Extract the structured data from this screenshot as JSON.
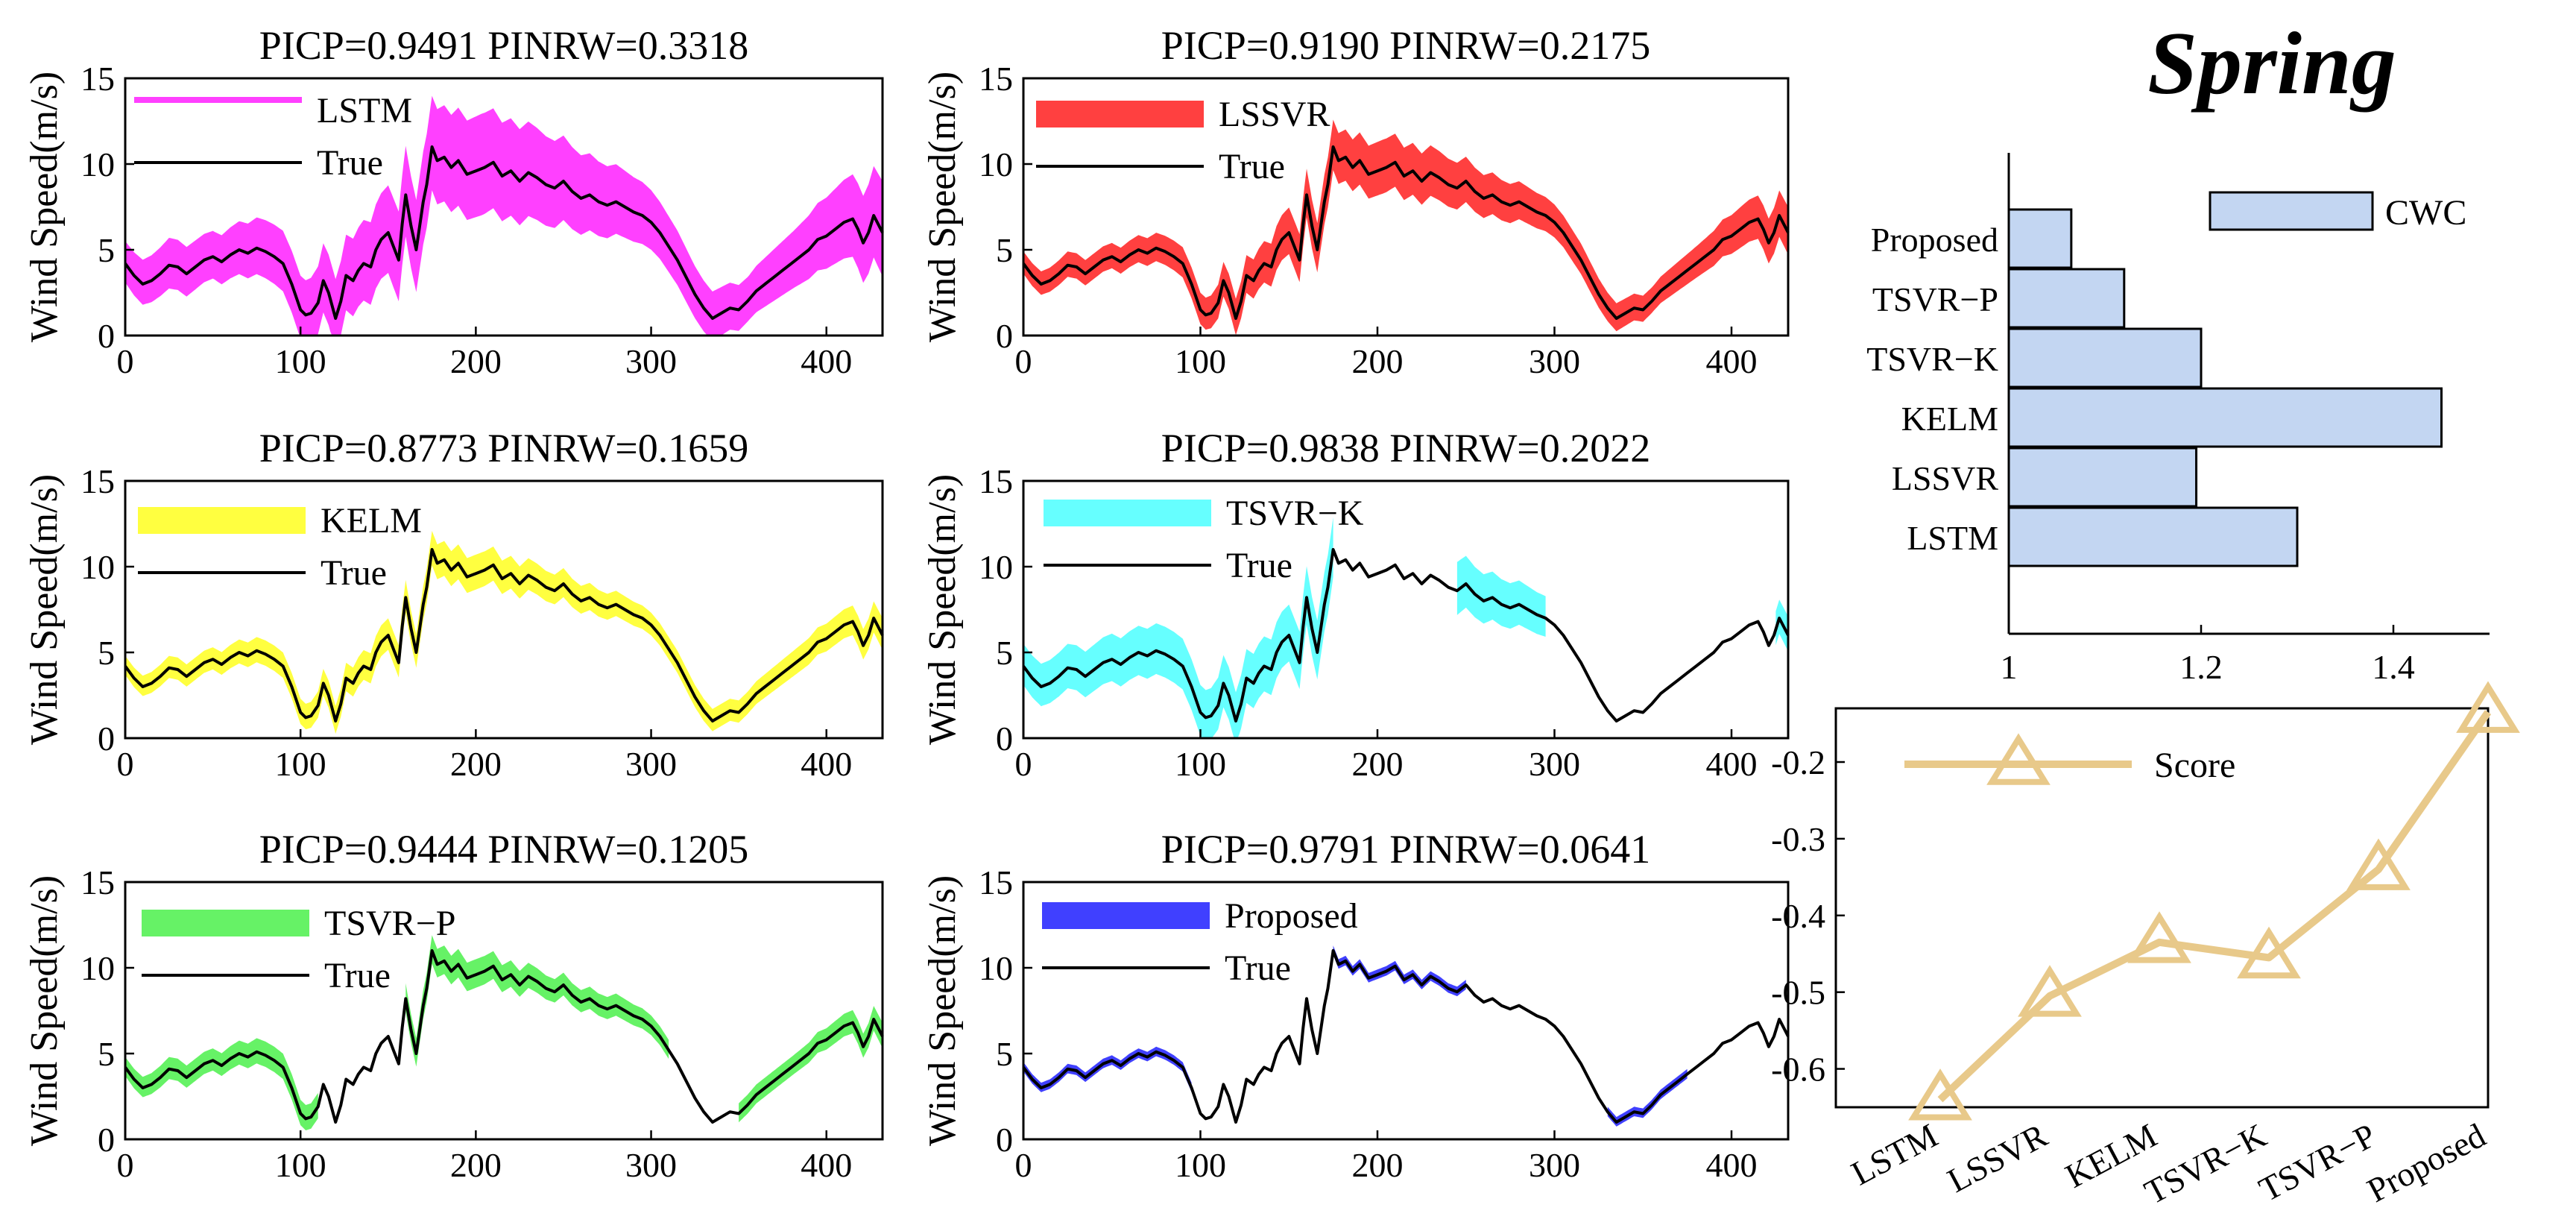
{
  "figure_title": "Spring",
  "chart_data": [
    {
      "type": "line",
      "title": "PICP=0.9491  PINRW=0.3318",
      "ylabel": "Wind Speed(m/s)",
      "xlim": [
        0,
        432
      ],
      "ylim": [
        0,
        15
      ],
      "xticks": [
        0,
        100,
        200,
        300,
        400
      ],
      "yticks": [
        0,
        5,
        10,
        15
      ],
      "series": [
        {
          "name": "LSTM",
          "kind": "interval",
          "color": "#ff00ff"
        },
        {
          "name": "True",
          "kind": "line",
          "color": "#000000"
        }
      ],
      "interval_halfwidth": [
        1.3,
        1.6,
        1.5,
        1.8,
        2.0,
        2.4,
        2.8,
        3.0,
        3.2,
        3.0,
        2.6,
        2.2,
        1.8,
        1.6,
        1.4,
        1.8,
        2.4,
        3.0
      ],
      "coverage": [
        [
          0,
          432
        ]
      ]
    },
    {
      "type": "line",
      "title": "PICP=0.9190  PINRW=0.2175",
      "ylabel": "Wind Speed(m/s)",
      "xlim": [
        0,
        432
      ],
      "ylim": [
        0,
        15
      ],
      "xticks": [
        0,
        100,
        200,
        300,
        400
      ],
      "yticks": [
        0,
        5,
        10,
        15
      ],
      "series": [
        {
          "name": "LSSVR",
          "kind": "interval",
          "color": "#ff0000"
        },
        {
          "name": "True",
          "kind": "line",
          "color": "#000000"
        }
      ],
      "interval_halfwidth": [
        0.7,
        0.8,
        0.8,
        0.9,
        1.0,
        1.2,
        1.5,
        1.6,
        1.7,
        1.6,
        1.4,
        1.2,
        1.0,
        0.9,
        0.8,
        1.0,
        1.3,
        1.5
      ],
      "coverage": [
        [
          0,
          432
        ]
      ]
    },
    {
      "type": "line",
      "title": "PICP=0.8773  PINRW=0.1659",
      "ylabel": "Wind Speed(m/s)",
      "xlim": [
        0,
        432
      ],
      "ylim": [
        0,
        15
      ],
      "xticks": [
        0,
        100,
        200,
        300,
        400
      ],
      "yticks": [
        0,
        5,
        10,
        15
      ],
      "series": [
        {
          "name": "KELM",
          "kind": "interval",
          "color": "#ffff00"
        },
        {
          "name": "True",
          "kind": "line",
          "color": "#000000"
        }
      ],
      "interval_halfwidth": [
        0.6,
        0.7,
        0.7,
        0.8,
        0.8,
        0.9,
        1.0,
        1.1,
        1.1,
        1.0,
        0.9,
        0.8,
        0.7,
        0.7,
        0.7,
        0.8,
        0.9,
        1.0
      ],
      "coverage": [
        [
          0,
          432
        ]
      ]
    },
    {
      "type": "line",
      "title": "PICP=0.9838  PINRW=0.2022",
      "ylabel": "Wind Speed(m/s)",
      "xlim": [
        0,
        432
      ],
      "ylim": [
        0,
        15
      ],
      "xticks": [
        0,
        100,
        200,
        300,
        400
      ],
      "yticks": [
        0,
        5,
        10,
        15
      ],
      "series": [
        {
          "name": "TSVR−K",
          "kind": "interval",
          "color": "#33ffff"
        },
        {
          "name": "True",
          "kind": "line",
          "color": "#000000"
        }
      ],
      "interval_halfwidth": [
        1.3,
        1.4,
        1.5,
        1.6,
        1.6,
        1.7,
        1.8,
        1.9,
        2.0,
        1.8,
        1.6,
        1.4,
        1.2,
        1.1,
        1.0,
        1.0,
        1.0,
        1.1
      ],
      "coverage": [
        [
          0,
          175
        ],
        [
          245,
          295
        ],
        [
          425,
          432
        ]
      ]
    },
    {
      "type": "line",
      "title": "PICP=0.9444  PINRW=0.1205",
      "ylabel": "Wind Speed(m/s)",
      "xlim": [
        0,
        432
      ],
      "ylim": [
        0,
        15
      ],
      "xticks": [
        0,
        100,
        200,
        300,
        400
      ],
      "yticks": [
        0,
        5,
        10,
        15
      ],
      "series": [
        {
          "name": "TSVR−P",
          "kind": "interval",
          "color": "#33ee33"
        },
        {
          "name": "True",
          "kind": "line",
          "color": "#000000"
        }
      ],
      "interval_halfwidth": [
        0.6,
        0.7,
        0.7,
        0.8,
        0.8,
        0.8,
        0.9,
        0.9,
        0.9,
        0.8,
        0.7,
        0.7,
        0.6,
        0.6,
        0.6,
        0.6,
        0.7,
        0.8
      ],
      "coverage": [
        [
          0,
          110
        ],
        [
          160,
          310
        ],
        [
          350,
          432
        ]
      ]
    },
    {
      "type": "line",
      "title": "PICP=0.9791  PINRW=0.0641",
      "ylabel": "Wind Speed(m/s)",
      "xlim": [
        0,
        432
      ],
      "ylim": [
        0,
        15
      ],
      "xticks": [
        0,
        100,
        200,
        300,
        400
      ],
      "yticks": [
        0,
        5,
        10,
        15
      ],
      "series": [
        {
          "name": "Proposed",
          "kind": "interval",
          "color": "#0000ff"
        },
        {
          "name": "True",
          "kind": "line",
          "color": "#000000"
        }
      ],
      "interval_halfwidth": [
        0.3,
        0.3,
        0.3,
        0.3,
        0.3,
        0.3,
        0.3,
        0.3,
        0.3,
        0.3,
        0.3,
        0.3,
        0.3,
        0.3,
        0.3,
        0.3,
        0.3,
        0.3
      ],
      "coverage": [
        [
          0,
          95
        ],
        [
          175,
          250
        ],
        [
          330,
          375
        ]
      ]
    },
    {
      "type": "bar",
      "orientation": "horizontal",
      "categories": [
        "Proposed",
        "TSVR−P",
        "TSVR−K",
        "KELM",
        "LSSVR",
        "LSTM"
      ],
      "values": [
        1.065,
        1.12,
        1.2,
        1.45,
        1.195,
        1.3
      ],
      "xlim": [
        1,
        1.5
      ],
      "xticks": [
        1,
        1.2,
        1.4
      ],
      "legend": "CWC",
      "legend_position": "top-right",
      "color": "#c3d6f2"
    },
    {
      "type": "line",
      "categories": [
        "LSTM",
        "LSSVR",
        "KELM",
        "TSVR−K",
        "TSVR−P",
        "Proposed"
      ],
      "values": [
        -0.64,
        -0.505,
        -0.435,
        -0.455,
        -0.34,
        -0.135
      ],
      "ylim": [
        -0.65,
        -0.13
      ],
      "yticks": [
        -0.2,
        -0.3,
        -0.4,
        -0.5,
        -0.6
      ],
      "ytick_labels": [
        "-0.2",
        "-0.3",
        "-0.4",
        "-0.5",
        "-0.6"
      ],
      "legend": "Score",
      "legend_position": "top-left",
      "color": "#e8c98a",
      "marker": "triangle"
    }
  ],
  "true_series": {
    "x": [
      0,
      5,
      10,
      15,
      20,
      25,
      30,
      35,
      40,
      45,
      50,
      55,
      60,
      65,
      70,
      75,
      80,
      85,
      90,
      95,
      100,
      103,
      106,
      110,
      113,
      116,
      120,
      123,
      126,
      130,
      133,
      136,
      140,
      143,
      146,
      150,
      153,
      156,
      158,
      160,
      163,
      166,
      170,
      172,
      175,
      178,
      182,
      186,
      190,
      195,
      200,
      205,
      210,
      215,
      220,
      225,
      230,
      235,
      240,
      245,
      250,
      255,
      260,
      265,
      270,
      275,
      280,
      285,
      290,
      295,
      300,
      305,
      310,
      315,
      320,
      325,
      330,
      335,
      340,
      345,
      350,
      355,
      360,
      365,
      370,
      375,
      380,
      385,
      390,
      395,
      400,
      405,
      410,
      415,
      418,
      421,
      424,
      427,
      430,
      432
    ],
    "y": [
      4.2,
      3.5,
      3.0,
      3.2,
      3.6,
      4.1,
      4.0,
      3.6,
      4.0,
      4.4,
      4.6,
      4.3,
      4.7,
      5.0,
      4.8,
      5.1,
      4.9,
      4.6,
      4.2,
      3.0,
      1.5,
      1.2,
      1.3,
      1.9,
      3.2,
      2.5,
      1.0,
      2.0,
      3.5,
      3.2,
      3.8,
      4.2,
      4.0,
      5.0,
      5.6,
      6.0,
      5.2,
      4.4,
      6.5,
      8.2,
      6.4,
      5.0,
      7.8,
      8.8,
      11.0,
      10.2,
      10.4,
      9.8,
      10.2,
      9.4,
      9.6,
      9.8,
      10.1,
      9.3,
      9.6,
      9.0,
      9.5,
      9.2,
      8.8,
      8.6,
      9.0,
      8.4,
      8.0,
      8.2,
      7.8,
      7.6,
      7.8,
      7.5,
      7.2,
      7.0,
      6.6,
      6.0,
      5.2,
      4.4,
      3.4,
      2.4,
      1.6,
      1.0,
      1.3,
      1.6,
      1.5,
      2.0,
      2.6,
      3.0,
      3.4,
      3.8,
      4.2,
      4.6,
      5.0,
      5.6,
      5.8,
      6.2,
      6.6,
      6.8,
      6.2,
      5.4,
      6.0,
      7.0,
      6.4,
      6.0
    ]
  }
}
